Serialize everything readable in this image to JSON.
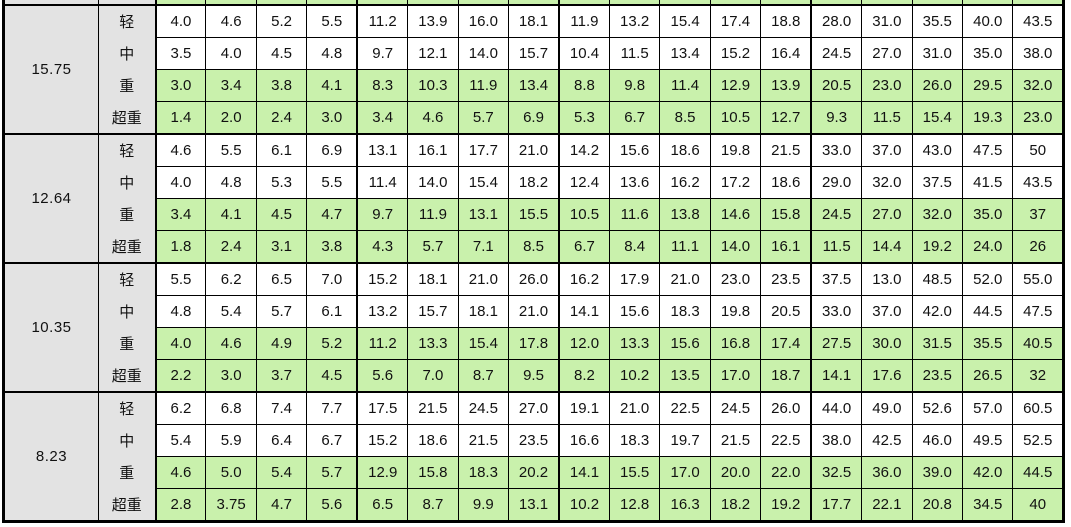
{
  "colors": {
    "cell_green": "#c9f1ac",
    "label_gray": "#e3e3e3",
    "grid_border": "#000000",
    "cell_white": "#ffffff",
    "text": "#111111"
  },
  "table": {
    "data_columns": 18,
    "section_start_columns": [
      4,
      8,
      13
    ],
    "category_labels": [
      "轻",
      "中",
      "重",
      "超重"
    ],
    "row_shades": [
      "white",
      "white",
      "green",
      "green"
    ],
    "partial_top_row": {
      "visible": true,
      "shade": "green"
    },
    "groups": [
      {
        "label": "15.75",
        "rows": [
          {
            "category": "轻",
            "shade": "white",
            "values": [
              "4.0",
              "4.6",
              "5.2",
              "5.5",
              "11.2",
              "13.9",
              "16.0",
              "18.1",
              "11.9",
              "13.2",
              "15.4",
              "17.4",
              "18.8",
              "28.0",
              "31.0",
              "35.5",
              "40.0",
              "43.5"
            ]
          },
          {
            "category": "中",
            "shade": "white",
            "values": [
              "3.5",
              "4.0",
              "4.5",
              "4.8",
              "9.7",
              "12.1",
              "14.0",
              "15.7",
              "10.4",
              "11.5",
              "13.4",
              "15.2",
              "16.4",
              "24.5",
              "27.0",
              "31.0",
              "35.0",
              "38.0"
            ]
          },
          {
            "category": "重",
            "shade": "green",
            "values": [
              "3.0",
              "3.4",
              "3.8",
              "4.1",
              "8.3",
              "10.3",
              "11.9",
              "13.4",
              "8.8",
              "9.8",
              "11.4",
              "12.9",
              "13.9",
              "20.5",
              "23.0",
              "26.0",
              "29.5",
              "32.0"
            ]
          },
          {
            "category": "超重",
            "shade": "green",
            "values": [
              "1.4",
              "2.0",
              "2.4",
              "3.0",
              "3.4",
              "4.6",
              "5.7",
              "6.9",
              "5.3",
              "6.7",
              "8.5",
              "10.5",
              "12.7",
              "9.3",
              "11.5",
              "15.4",
              "19.3",
              "23.0"
            ]
          }
        ]
      },
      {
        "label": "12.64",
        "rows": [
          {
            "category": "轻",
            "shade": "white",
            "values": [
              "4.6",
              "5.5",
              "6.1",
              "6.9",
              "13.1",
              "16.1",
              "17.7",
              "21.0",
              "14.2",
              "15.6",
              "18.6",
              "19.8",
              "21.5",
              "33.0",
              "37.0",
              "43.0",
              "47.5",
              "50"
            ]
          },
          {
            "category": "中",
            "shade": "white",
            "values": [
              "4.0",
              "4.8",
              "5.3",
              "5.5",
              "11.4",
              "14.0",
              "15.4",
              "18.2",
              "12.4",
              "13.6",
              "16.2",
              "17.2",
              "18.6",
              "29.0",
              "32.0",
              "37.5",
              "41.5",
              "43.5"
            ]
          },
          {
            "category": "重",
            "shade": "green",
            "values": [
              "3.4",
              "4.1",
              "4.5",
              "4.7",
              "9.7",
              "11.9",
              "13.1",
              "15.5",
              "10.5",
              "11.6",
              "13.8",
              "14.6",
              "15.8",
              "24.5",
              "27.0",
              "32.0",
              "35.0",
              "37"
            ]
          },
          {
            "category": "超重",
            "shade": "green",
            "values": [
              "1.8",
              "2.4",
              "3.1",
              "3.8",
              "4.3",
              "5.7",
              "7.1",
              "8.5",
              "6.7",
              "8.4",
              "11.1",
              "14.0",
              "16.1",
              "11.5",
              "14.4",
              "19.2",
              "24.0",
              "26"
            ]
          }
        ]
      },
      {
        "label": "10.35",
        "rows": [
          {
            "category": "轻",
            "shade": "white",
            "values": [
              "5.5",
              "6.2",
              "6.5",
              "7.0",
              "15.2",
              "18.1",
              "21.0",
              "26.0",
              "16.2",
              "17.9",
              "21.0",
              "23.0",
              "23.5",
              "37.5",
              "13.0",
              "48.5",
              "52.0",
              "55.0"
            ]
          },
          {
            "category": "中",
            "shade": "white",
            "values": [
              "4.8",
              "5.4",
              "5.7",
              "6.1",
              "13.2",
              "15.7",
              "18.1",
              "21.0",
              "14.1",
              "15.6",
              "18.3",
              "19.8",
              "20.5",
              "33.0",
              "37.0",
              "42.0",
              "44.5",
              "47.5"
            ]
          },
          {
            "category": "重",
            "shade": "green",
            "values": [
              "4.0",
              "4.6",
              "4.9",
              "5.2",
              "11.2",
              "13.3",
              "15.4",
              "17.8",
              "12.0",
              "13.3",
              "15.6",
              "16.8",
              "17.4",
              "27.5",
              "30.0",
              "31.5",
              "35.5",
              "40.5"
            ]
          },
          {
            "category": "超重",
            "shade": "green",
            "values": [
              "2.2",
              "3.0",
              "3.7",
              "4.5",
              "5.6",
              "7.0",
              "8.7",
              "9.5",
              "8.2",
              "10.2",
              "13.5",
              "17.0",
              "18.7",
              "14.1",
              "17.6",
              "23.5",
              "26.5",
              "32"
            ]
          }
        ]
      },
      {
        "label": "8.23",
        "rows": [
          {
            "category": "轻",
            "shade": "white",
            "values": [
              "6.2",
              "6.8",
              "7.4",
              "7.7",
              "17.5",
              "21.5",
              "24.5",
              "27.0",
              "19.1",
              "21.0",
              "22.5",
              "24.5",
              "26.0",
              "44.0",
              "49.0",
              "52.6",
              "57.0",
              "60.5"
            ]
          },
          {
            "category": "中",
            "shade": "white",
            "values": [
              "5.4",
              "5.9",
              "6.4",
              "6.7",
              "15.2",
              "18.6",
              "21.5",
              "23.5",
              "16.6",
              "18.3",
              "19.7",
              "21.5",
              "22.5",
              "38.0",
              "42.5",
              "46.0",
              "49.5",
              "52.5"
            ]
          },
          {
            "category": "重",
            "shade": "green",
            "values": [
              "4.6",
              "5.0",
              "5.4",
              "5.7",
              "12.9",
              "15.8",
              "18.3",
              "20.2",
              "14.1",
              "15.5",
              "17.0",
              "20.0",
              "22.0",
              "32.5",
              "36.0",
              "39.0",
              "42.0",
              "44.5"
            ]
          },
          {
            "category": "超重",
            "shade": "green",
            "values": [
              "2.8",
              "3.75",
              "4.7",
              "5.6",
              "6.5",
              "8.7",
              "9.9",
              "13.1",
              "10.2",
              "12.8",
              "16.3",
              "18.2",
              "19.2",
              "17.7",
              "22.1",
              "20.8",
              "34.5",
              "40"
            ]
          }
        ]
      }
    ]
  }
}
